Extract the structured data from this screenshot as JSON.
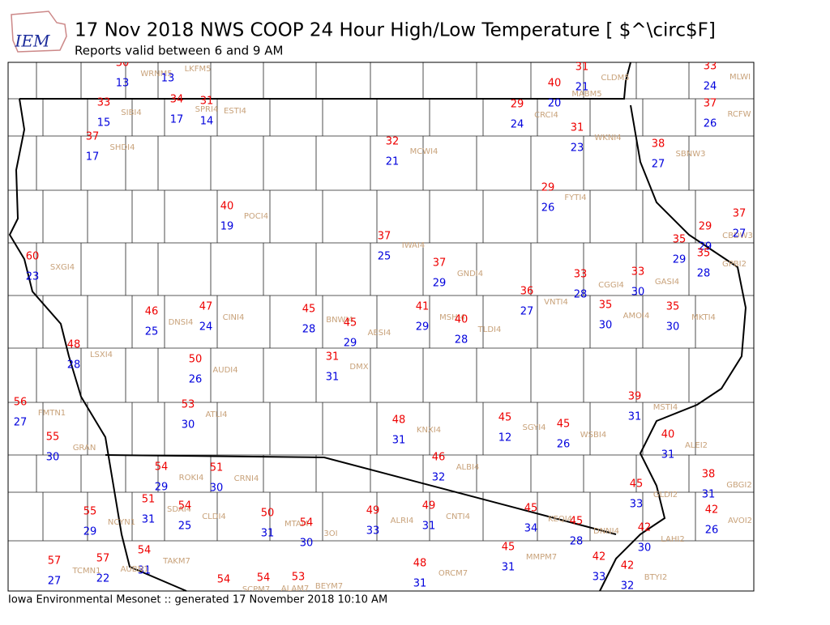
{
  "header": {
    "logo": "IEM",
    "title": "17 Nov 2018 NWS COOP 24 Hour High/Low Temperature [ $^\\circ$F]",
    "subtitle": "Reports valid between 6 and 9 AM"
  },
  "footer": "Iowa Environmental Mesonet :: generated 17 November 2018 10:10 AM",
  "stations": [
    {
      "high": "30",
      "low": "13"
    },
    {
      "name": "WRNM5",
      "low": "13"
    },
    {
      "name": "LKFM5"
    },
    {
      "name": "CLDM5",
      "high": "31",
      "low": "21"
    },
    {
      "name": "MABM5",
      "high": "40",
      "low": "20"
    },
    {
      "name": "MLWI",
      "high": "33",
      "low": "24"
    },
    {
      "name": "SIBI4",
      "high": "33",
      "low": "15"
    },
    {
      "high": "34",
      "low": "17"
    },
    {
      "name": "SPRI4",
      "high": "31",
      "low": "14"
    },
    {
      "name": "ESTI4"
    },
    {
      "name": "CRCI4",
      "high": "29",
      "low": "24"
    },
    {
      "name": "RCFW",
      "high": "37",
      "low": "26"
    },
    {
      "name": "SHDI4",
      "high": "37",
      "low": "17"
    },
    {
      "name": "WKNI4",
      "high": "31",
      "low": "23"
    },
    {
      "name": "MCWI4",
      "high": "32",
      "low": "21"
    },
    {
      "name": "SBNW3",
      "high": "38",
      "low": "27"
    },
    {
      "name": "FYTI4",
      "high": "29",
      "low": "26"
    },
    {
      "name": "POCI4",
      "high": "40",
      "low": "19"
    },
    {
      "name": "CBDW3",
      "high": "37",
      "low": "27"
    },
    {
      "high": "35",
      "low": "29"
    },
    {
      "high": "29",
      "low": "29"
    },
    {
      "name": "GPBI2",
      "high": "35",
      "low": "28"
    },
    {
      "name": "IWAI4",
      "high": "37",
      "low": "25"
    },
    {
      "name": "SXGI4",
      "high": "60",
      "low": "23"
    },
    {
      "name": "GNDI4",
      "high": "37",
      "low": "29"
    },
    {
      "name": "CGGI4",
      "high": "33",
      "low": "28"
    },
    {
      "name": "GASI4",
      "high": "33",
      "low": "30"
    },
    {
      "name": "VNTI4",
      "high": "36",
      "low": "27"
    },
    {
      "name": "AMOI4",
      "high": "35",
      "low": "30"
    },
    {
      "name": "MKTI4",
      "high": "35",
      "low": "30"
    },
    {
      "name": "DNSI4",
      "high": "46",
      "low": "25"
    },
    {
      "name": "CINI4",
      "high": "47",
      "low": "24"
    },
    {
      "name": "BNWI4",
      "high": "45",
      "low": "28"
    },
    {
      "name": "AESI4",
      "high": "45",
      "low": "29"
    },
    {
      "name": "MSHI4",
      "high": "41",
      "low": "29"
    },
    {
      "name": "TLDI4",
      "high": "40",
      "low": "28"
    },
    {
      "name": "LSXI4",
      "high": "48",
      "low": "28"
    },
    {
      "name": "DMX",
      "high": "31",
      "low": "31"
    },
    {
      "name": "AUDI4",
      "high": "50",
      "low": "26"
    },
    {
      "name": "FMTN1",
      "high": "56",
      "low": "27"
    },
    {
      "name": "ATLI4",
      "high": "53",
      "low": "30"
    },
    {
      "name": "MSTI4",
      "high": "39",
      "low": "31"
    },
    {
      "name": "KNXI4",
      "high": "48",
      "low": "31"
    },
    {
      "name": "SGYI4",
      "high": "45",
      "low": "12"
    },
    {
      "name": "WSBI4",
      "high": "45",
      "low": "26"
    },
    {
      "name": "GRAN",
      "high": "55",
      "low": "30"
    },
    {
      "name": "ALEI2",
      "high": "40",
      "low": "31"
    },
    {
      "name": "ALBI4",
      "high": "46",
      "low": "32"
    },
    {
      "name": "ROKI4",
      "high": "54",
      "low": "29"
    },
    {
      "name": "CRNI4",
      "high": "51",
      "low": "30"
    },
    {
      "name": "GBGI2",
      "high": "38",
      "low": "31"
    },
    {
      "name": "GLDI2",
      "high": "45",
      "low": "33"
    },
    {
      "name": "SDAI4",
      "high": "51",
      "low": "31"
    },
    {
      "name": "CLDI4",
      "high": "54",
      "low": "25"
    },
    {
      "name": "NCYN1",
      "high": "55",
      "low": "29"
    },
    {
      "name": "MTAI4",
      "high": "50",
      "low": "31"
    },
    {
      "name": "3OI",
      "high": "54",
      "low": "30"
    },
    {
      "name": "ALRI4",
      "high": "49",
      "low": "33"
    },
    {
      "name": "CNTI4",
      "high": "49",
      "low": "31"
    },
    {
      "name": "KEQI4",
      "high": "45",
      "low": "34"
    },
    {
      "name": "AVOI2",
      "high": "42",
      "low": "26"
    },
    {
      "name": "DNNI4",
      "high": "45",
      "low": "28"
    },
    {
      "name": "LAHI2",
      "high": "42",
      "low": "30"
    },
    {
      "name": "MMPM7",
      "high": "45",
      "low": "31"
    },
    {
      "name": "TAKM7",
      "high": "54",
      "low": "31"
    },
    {
      "name": "AUBN1"
    },
    {
      "name": "TCMN1",
      "high": "57",
      "low": "27"
    },
    {
      "high": "57",
      "low": "22"
    },
    {
      "name": "ORCM7",
      "high": "48",
      "low": "31"
    },
    {
      "high": "42",
      "low": "33"
    },
    {
      "name": "BTYI2",
      "high": "42",
      "low": "32"
    },
    {
      "high": "54"
    },
    {
      "name": "SCPM7",
      "high": "54"
    },
    {
      "name": "ALAM7",
      "high": "53"
    },
    {
      "name": "BEYM7"
    }
  ]
}
